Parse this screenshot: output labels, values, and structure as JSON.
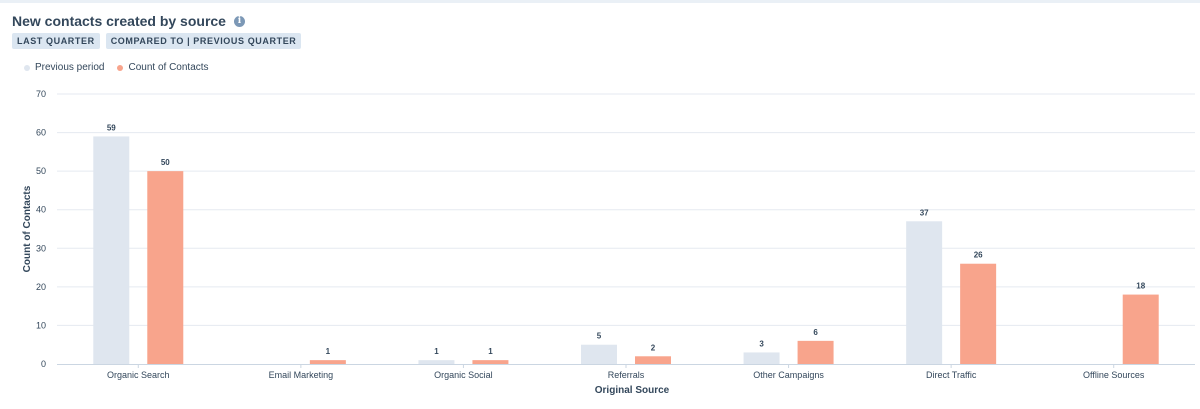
{
  "header": {
    "title": "New contacts created by source",
    "pills": [
      "LAST QUARTER",
      "COMPARED TO | PREVIOUS QUARTER"
    ]
  },
  "colors": {
    "previous": "#dfe6ef",
    "current": "#f8a48c",
    "grid": "#e5eaf0",
    "text": "#33475b"
  },
  "chart_data": {
    "type": "bar",
    "title": "New contacts created by source",
    "xlabel": "Original Source",
    "ylabel": "Count of Contacts",
    "ylim": [
      0,
      70
    ],
    "yticks": [
      0,
      10,
      20,
      30,
      40,
      50,
      60,
      70
    ],
    "grid": true,
    "legend_position": "top-left",
    "categories": [
      "Organic Search",
      "Email Marketing",
      "Organic Social",
      "Referrals",
      "Other Campaigns",
      "Direct Traffic",
      "Offline Sources"
    ],
    "series": [
      {
        "name": "Previous period",
        "values": [
          59,
          0,
          1,
          5,
          3,
          37,
          0
        ]
      },
      {
        "name": "Count of Contacts",
        "values": [
          50,
          1,
          1,
          2,
          6,
          26,
          18
        ]
      }
    ]
  }
}
